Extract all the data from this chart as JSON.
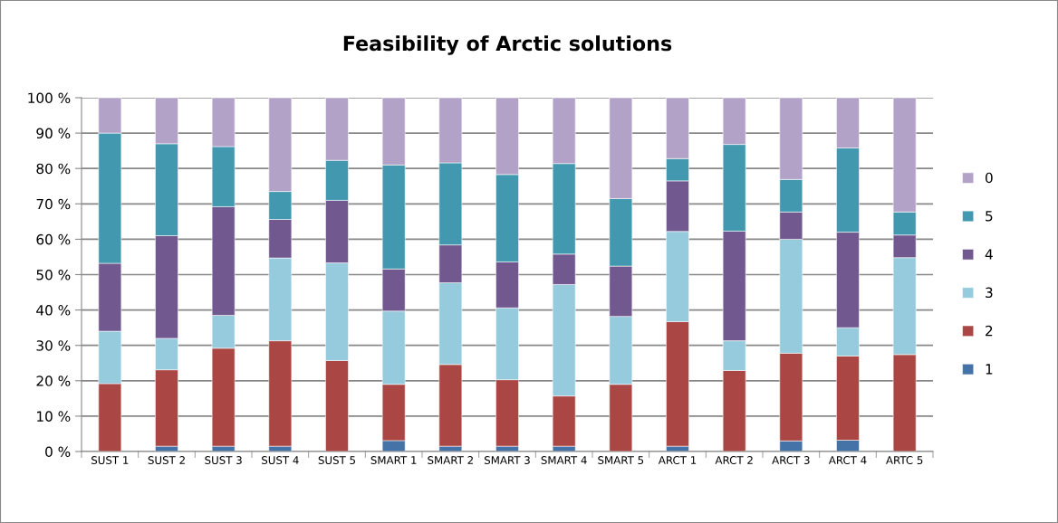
{
  "chart_data": {
    "type": "bar",
    "stacked": true,
    "title": "Feasibility of Arctic solutions",
    "categories": [
      "SUST 1",
      "SUST 2",
      "SUST 3",
      "SUST 4",
      "SUST 5",
      "SMART 1",
      "SMART 2",
      "SMART 3",
      "SMART 4",
      "SMART 5",
      "ARCT 1",
      "ARCT 2",
      "ARCT 3",
      "ARCT 4",
      "ARTC 5"
    ],
    "series": [
      {
        "name": "1",
        "color": "#4572a7",
        "values": [
          0,
          1.5,
          1.5,
          1.5,
          0,
          3.1,
          1.5,
          1.5,
          1.5,
          0,
          1.5,
          0,
          3,
          3.2,
          0
        ]
      },
      {
        "name": "2",
        "color": "#aa4643",
        "values": [
          19.2,
          21.6,
          27.7,
          29.8,
          25.7,
          15.9,
          23.1,
          18.8,
          14.2,
          19,
          35.2,
          22.9,
          24.8,
          23.8,
          27.4
        ]
      },
      {
        "name": "3",
        "color": "#96cbdd",
        "values": [
          14.8,
          8.9,
          9.3,
          23.4,
          27.6,
          20.7,
          23.1,
          20.3,
          31.5,
          19.2,
          25.5,
          8.4,
          32.2,
          8,
          27.4
        ]
      },
      {
        "name": "4",
        "color": "#71588f",
        "values": [
          19.2,
          29,
          30.7,
          10.9,
          17.7,
          11.9,
          10.7,
          13,
          8.6,
          14.2,
          14.3,
          31,
          7.7,
          27,
          6.4
        ]
      },
      {
        "name": "5",
        "color": "#4198af",
        "values": [
          36.8,
          26,
          17,
          7.9,
          11.3,
          29.4,
          23.2,
          24.7,
          25.6,
          19.1,
          6.3,
          24.5,
          9.2,
          23.8,
          6.5
        ]
      },
      {
        "name": "0",
        "color": "#b3a2c7",
        "values": [
          10,
          13,
          13.8,
          26.5,
          17.7,
          19,
          18.4,
          21.7,
          18.6,
          28.5,
          17.2,
          13.2,
          23.1,
          14.2,
          32.3
        ]
      }
    ],
    "ylim": [
      0,
      100
    ],
    "yticks": [
      {
        "value": 0,
        "label": "0 %"
      },
      {
        "value": 10,
        "label": "10 %"
      },
      {
        "value": 20,
        "label": "20 %"
      },
      {
        "value": 30,
        "label": "30 %"
      },
      {
        "value": 40,
        "label": "40 %"
      },
      {
        "value": 50,
        "label": "50 %"
      },
      {
        "value": 60,
        "label": "60 %"
      },
      {
        "value": 70,
        "label": "70 %"
      },
      {
        "value": 80,
        "label": "80 %"
      },
      {
        "value": 90,
        "label": "90 %"
      },
      {
        "value": 100,
        "label": "100 %"
      }
    ],
    "grid": "y",
    "legend": "right"
  }
}
